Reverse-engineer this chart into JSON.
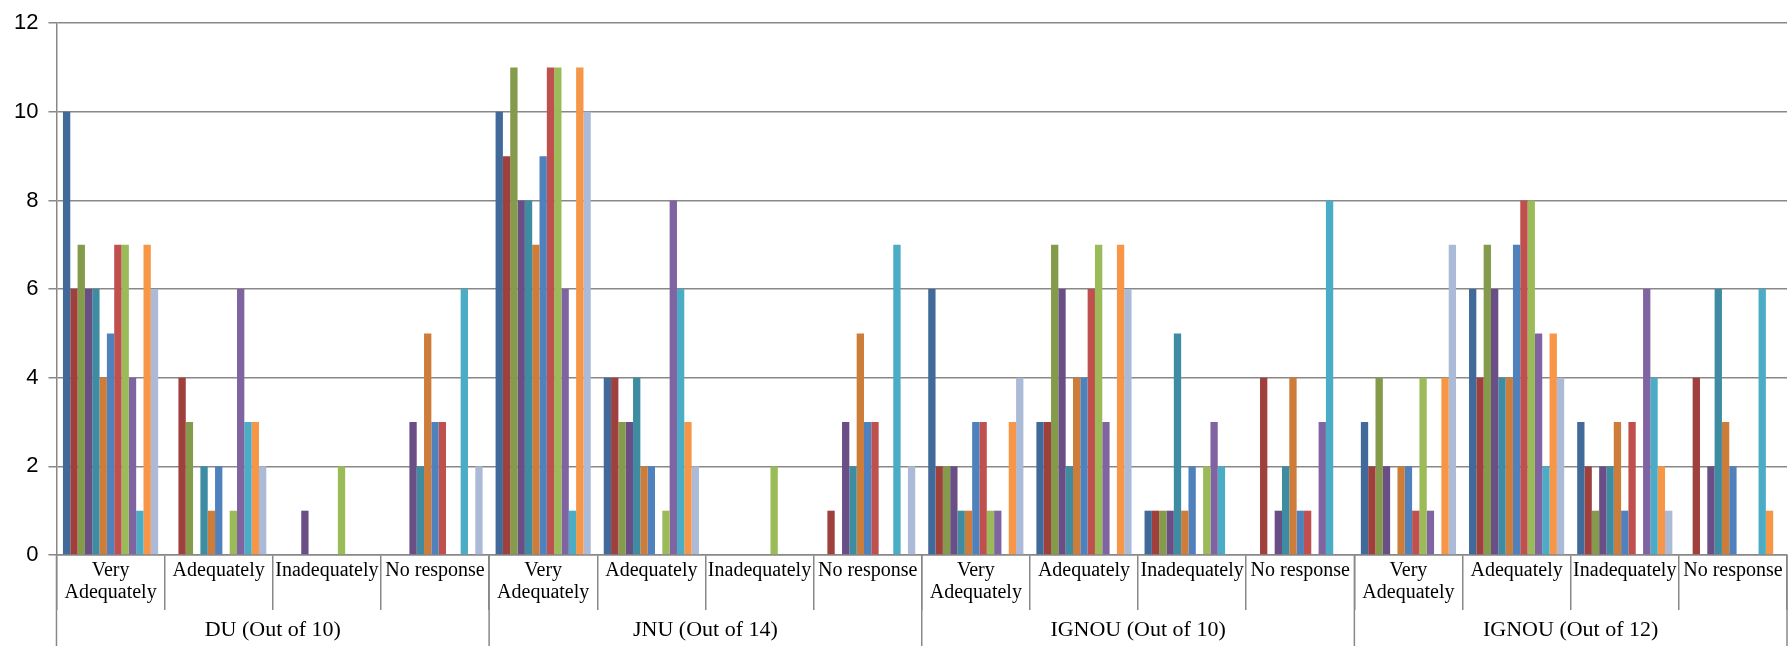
{
  "chart_data": {
    "type": "bar",
    "categories": [
      "Very Adequately",
      "Adequately",
      "Inadequately",
      "No response",
      "Very Adequately",
      "Adequately",
      "Inadequately",
      "No response",
      "Very Adequately",
      "Adequately",
      "Inadequately",
      "No response",
      "Very Adequately",
      "Adequately",
      "Inadequately",
      "No response"
    ],
    "annotations": [
      "DU (Out of 10)",
      "JNU (Out of 14)",
      "IGNOU (Out of 10)",
      "IGNOU (Out of 12)"
    ],
    "series": [
      {
        "color": "#416a9b",
        "values": [
          10,
          0,
          0,
          0,
          10,
          4,
          0,
          0,
          6,
          3,
          1,
          0,
          3,
          6,
          3,
          0
        ]
      },
      {
        "color": "#a0403d",
        "values": [
          6,
          4,
          0,
          0,
          9,
          4,
          0,
          1,
          2,
          3,
          1,
          4,
          2,
          4,
          2,
          4
        ]
      },
      {
        "color": "#839b4b",
        "values": [
          7,
          3,
          0,
          0,
          11,
          3,
          0,
          0,
          2,
          7,
          1,
          0,
          4,
          7,
          1,
          0
        ]
      },
      {
        "color": "#6a4f87",
        "values": [
          6,
          0,
          1,
          3,
          8,
          3,
          0,
          3,
          2,
          6,
          1,
          1,
          2,
          6,
          2,
          2
        ]
      },
      {
        "color": "#3d8ca2",
        "values": [
          6,
          2,
          0,
          2,
          8,
          4,
          0,
          2,
          1,
          2,
          5,
          2,
          0,
          4,
          2,
          6
        ]
      },
      {
        "color": "#ce7c39",
        "values": [
          4,
          1,
          0,
          5,
          7,
          2,
          0,
          5,
          1,
          4,
          1,
          4,
          2,
          4,
          3,
          3
        ]
      },
      {
        "color": "#4f81bd",
        "values": [
          5,
          2,
          0,
          3,
          9,
          2,
          0,
          3,
          3,
          4,
          2,
          1,
          2,
          7,
          1,
          2
        ]
      },
      {
        "color": "#c0504d",
        "values": [
          7,
          0,
          0,
          3,
          11,
          0,
          0,
          3,
          3,
          6,
          0,
          1,
          1,
          8,
          3,
          0
        ]
      },
      {
        "color": "#9bbb59",
        "values": [
          7,
          1,
          2,
          0,
          11,
          1,
          2,
          0,
          1,
          7,
          2,
          0,
          4,
          8,
          0,
          0
        ]
      },
      {
        "color": "#8064a2",
        "values": [
          4,
          6,
          0,
          0,
          6,
          8,
          0,
          0,
          1,
          3,
          3,
          3,
          1,
          5,
          6,
          0
        ]
      },
      {
        "color": "#4bacc6",
        "values": [
          1,
          3,
          0,
          6,
          1,
          6,
          0,
          7,
          0,
          0,
          2,
          8,
          0,
          2,
          4,
          6
        ]
      },
      {
        "color": "#f79646",
        "values": [
          7,
          3,
          0,
          0,
          11,
          3,
          0,
          0,
          3,
          7,
          0,
          0,
          4,
          5,
          2,
          1
        ]
      },
      {
        "color": "#aabad7",
        "values": [
          6,
          2,
          0,
          2,
          10,
          2,
          0,
          2,
          4,
          6,
          0,
          0,
          7,
          4,
          1,
          0
        ]
      }
    ],
    "ylim": [
      0,
      12
    ],
    "yticks": [
      0,
      2,
      4,
      6,
      8,
      10,
      12
    ],
    "grid": "y",
    "legend": false
  }
}
